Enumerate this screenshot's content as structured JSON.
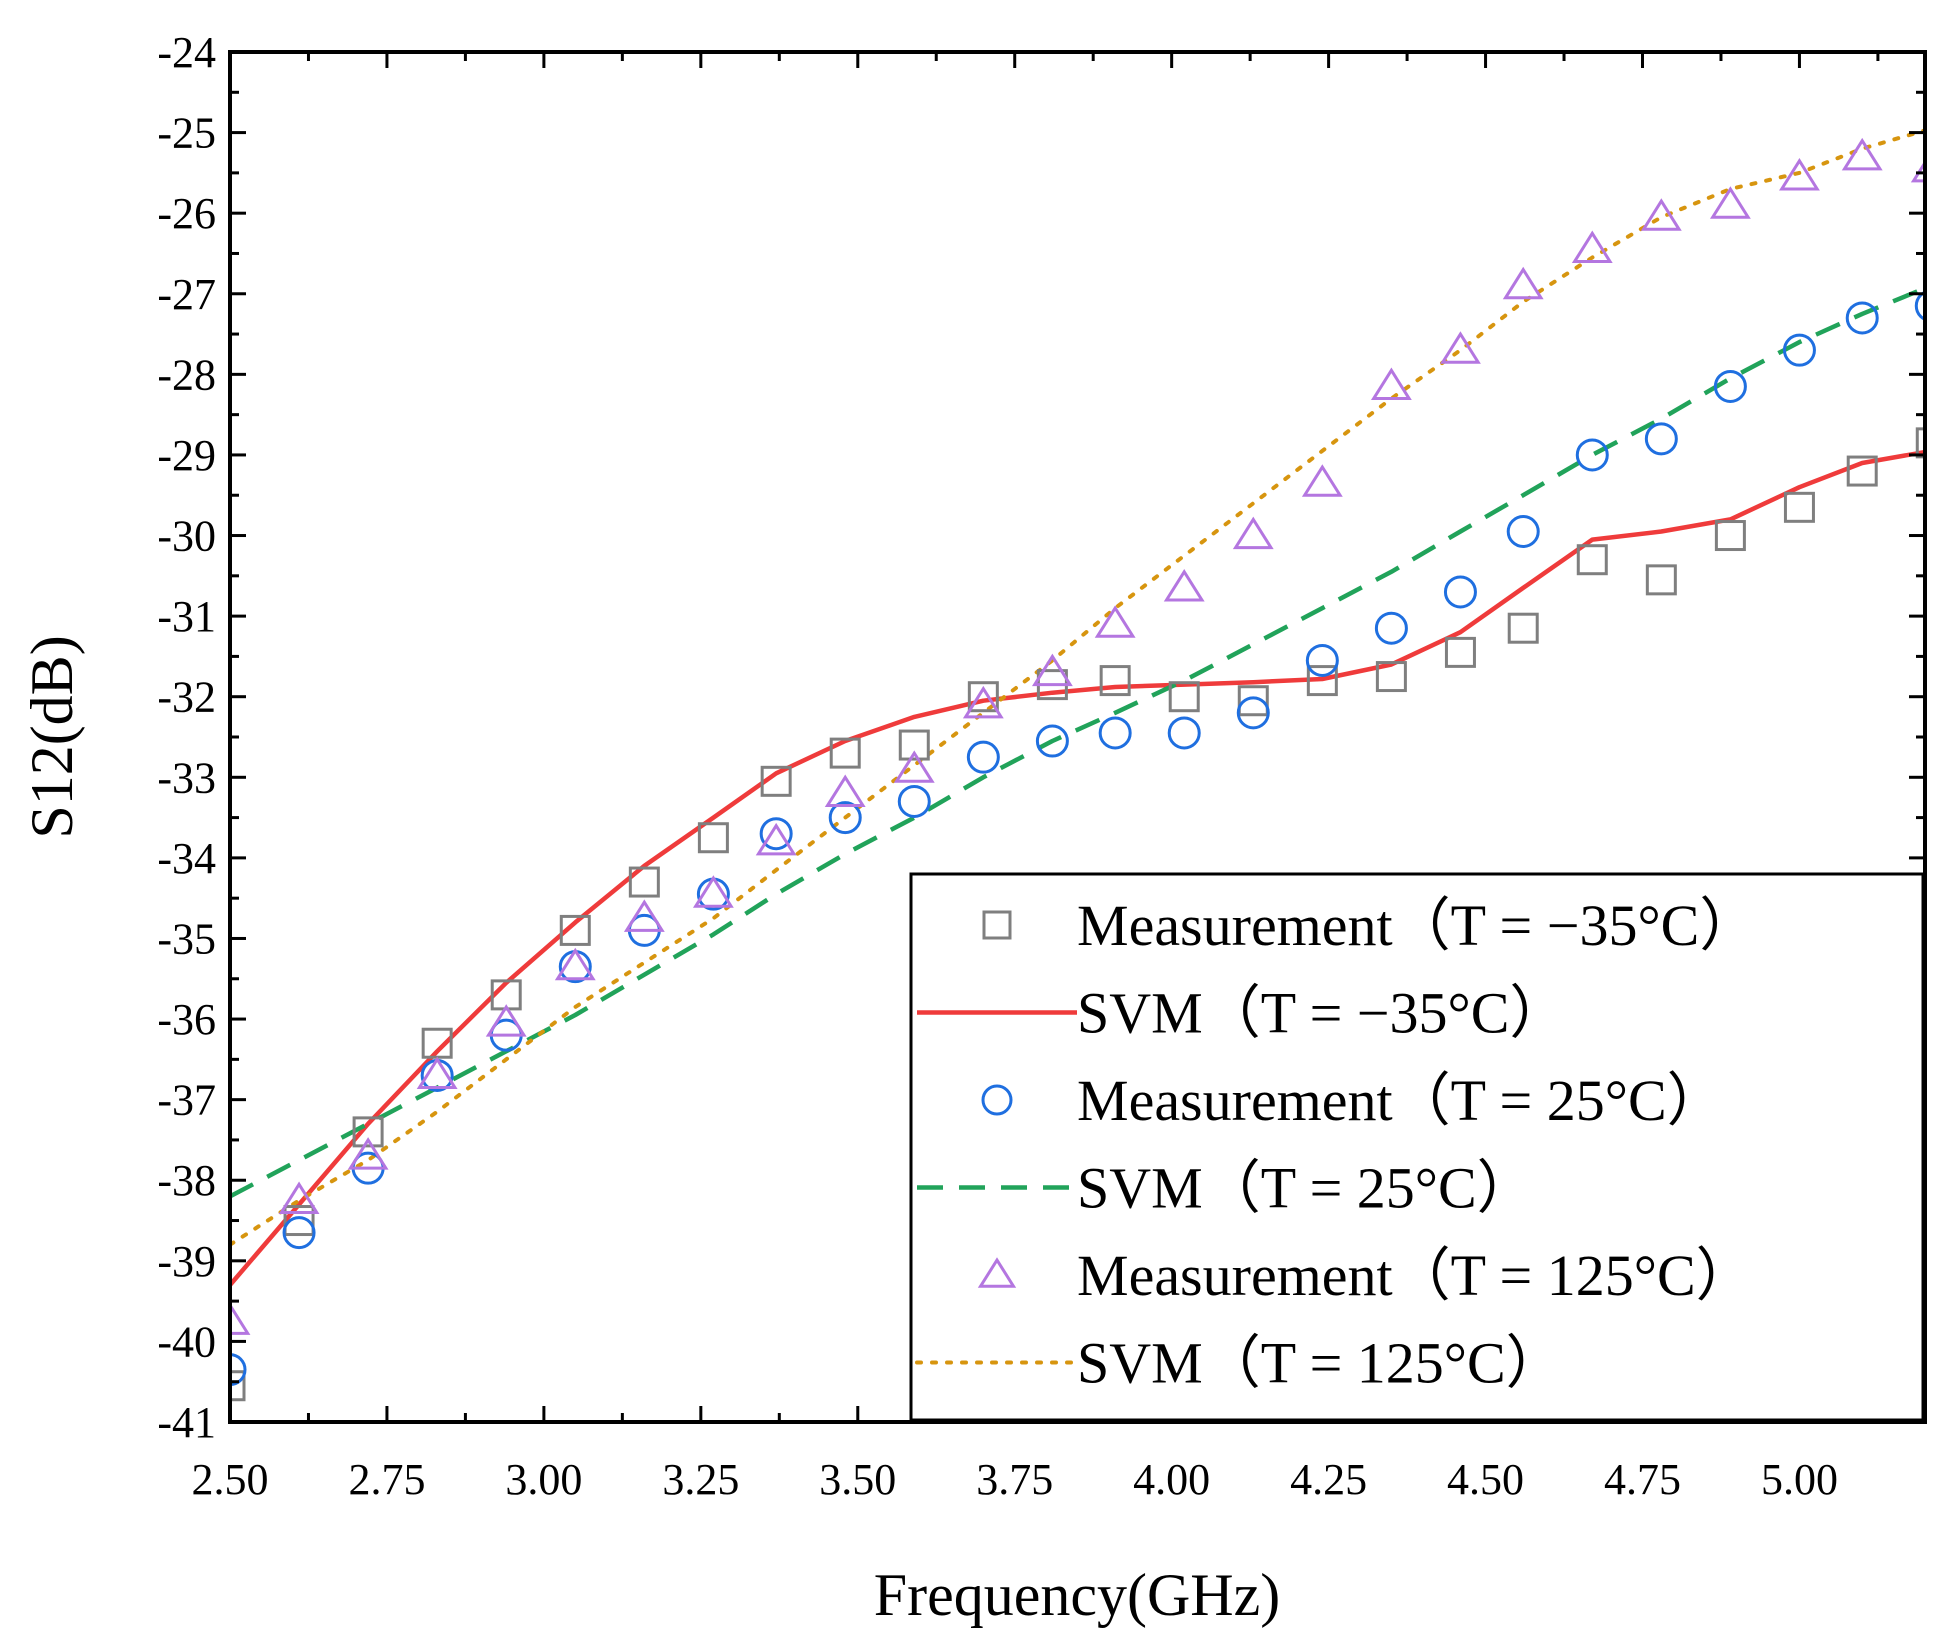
{
  "chart_data": {
    "type": "scatter",
    "title": "",
    "xlabel": "Frequency(GHz)",
    "ylabel": "S12(dB)",
    "xlim": [
      2.5,
      5.2
    ],
    "ylim": [
      -41,
      -24
    ],
    "xticks": [
      2.5,
      2.75,
      3.0,
      3.25,
      3.5,
      3.75,
      4.0,
      4.25,
      4.5,
      4.75,
      5.0
    ],
    "xtick_labels": [
      "2.50",
      "2.75",
      "3.00",
      "3.25",
      "3.50",
      "3.75",
      "4.00",
      "4.25",
      "4.50",
      "4.75",
      "5.00"
    ],
    "yticks": [
      -24,
      -25,
      -26,
      -27,
      -28,
      -29,
      -30,
      -31,
      -32,
      -33,
      -34,
      -35,
      -36,
      -37,
      -38,
      -39,
      -40,
      -41
    ],
    "ytick_labels": [
      "-24",
      "-25",
      "-26",
      "-27",
      "-28",
      "-29",
      "-30",
      "-31",
      "-32",
      "-33",
      "-34",
      "-35",
      "-36",
      "-37",
      "-38",
      "-39",
      "-40",
      "-41"
    ],
    "grid": false,
    "legend_position": "bottom-right",
    "x": [
      2.5,
      2.61,
      2.72,
      2.83,
      2.94,
      3.05,
      3.16,
      3.27,
      3.37,
      3.48,
      3.59,
      3.7,
      3.81,
      3.91,
      4.02,
      4.13,
      4.24,
      4.35,
      4.46,
      4.56,
      4.67,
      4.78,
      4.89,
      5.0,
      5.1,
      5.21
    ],
    "series": [
      {
        "name": "Measurement（T = −35°C）",
        "kind": "marker",
        "marker": "square",
        "color": "#7f7f7f",
        "values": [
          -40.55,
          -38.5,
          -37.4,
          -36.3,
          -35.7,
          -34.9,
          -34.3,
          -33.75,
          -33.05,
          -32.7,
          -32.6,
          -32.0,
          -31.85,
          -31.8,
          -32.0,
          -32.05,
          -31.8,
          -31.75,
          -31.45,
          -31.15,
          -30.3,
          -30.55,
          -30.0,
          -29.65,
          -29.2,
          -28.85
        ]
      },
      {
        "name": "SVM（T = −35°C）",
        "kind": "line",
        "dash": "solid",
        "color": "#ef3b3b",
        "values": [
          -39.3,
          -38.3,
          -37.3,
          -36.4,
          -35.55,
          -34.8,
          -34.1,
          -33.5,
          -32.95,
          -32.55,
          -32.25,
          -32.05,
          -31.95,
          -31.88,
          -31.85,
          -31.82,
          -31.78,
          -31.6,
          -31.2,
          -30.65,
          -30.05,
          -29.95,
          -29.8,
          -29.4,
          -29.1,
          -28.95
        ]
      },
      {
        "name": "Measurement（T = 25°C）",
        "kind": "marker",
        "marker": "circle",
        "color": "#1f6fe0",
        "values": [
          -40.35,
          -38.65,
          -37.85,
          -36.7,
          -36.2,
          -35.35,
          -34.9,
          -34.45,
          -33.7,
          -33.5,
          -33.3,
          -32.75,
          -32.55,
          -32.45,
          -32.45,
          -32.2,
          -31.55,
          -31.15,
          -30.7,
          -29.95,
          -29.0,
          -28.8,
          -28.15,
          -27.7,
          -27.3,
          -27.15
        ]
      },
      {
        "name": "SVM（T = 25°C）",
        "kind": "line",
        "dash": "dashed",
        "color": "#21a35a",
        "values": [
          -38.2,
          -37.75,
          -37.3,
          -36.85,
          -36.4,
          -35.95,
          -35.45,
          -34.95,
          -34.45,
          -33.95,
          -33.5,
          -33.0,
          -32.55,
          -32.2,
          -31.8,
          -31.35,
          -30.9,
          -30.45,
          -29.95,
          -29.5,
          -29.0,
          -28.55,
          -28.05,
          -27.6,
          -27.25,
          -26.9
        ]
      },
      {
        "name": "Measurement（T = 125°C）",
        "kind": "marker",
        "marker": "triangle",
        "color": "#b476e0",
        "values": [
          -39.75,
          -38.25,
          -37.7,
          -36.7,
          -36.05,
          -35.35,
          -34.75,
          -34.45,
          -33.8,
          -33.2,
          -32.9,
          -32.1,
          -31.7,
          -31.1,
          -30.65,
          -30.0,
          -29.35,
          -28.15,
          -27.7,
          -26.9,
          -26.45,
          -26.05,
          -25.9,
          -25.55,
          -25.3,
          -25.45
        ]
      },
      {
        "name": "SVM（T = 125°C）",
        "kind": "line",
        "dash": "dotted",
        "color": "#d7950f",
        "values": [
          -38.8,
          -38.25,
          -37.75,
          -37.15,
          -36.5,
          -35.85,
          -35.3,
          -34.75,
          -34.15,
          -33.5,
          -32.85,
          -32.2,
          -31.55,
          -30.9,
          -30.25,
          -29.6,
          -28.95,
          -28.3,
          -27.7,
          -27.1,
          -26.55,
          -26.05,
          -25.7,
          -25.5,
          -25.2,
          -24.95
        ]
      }
    ]
  }
}
